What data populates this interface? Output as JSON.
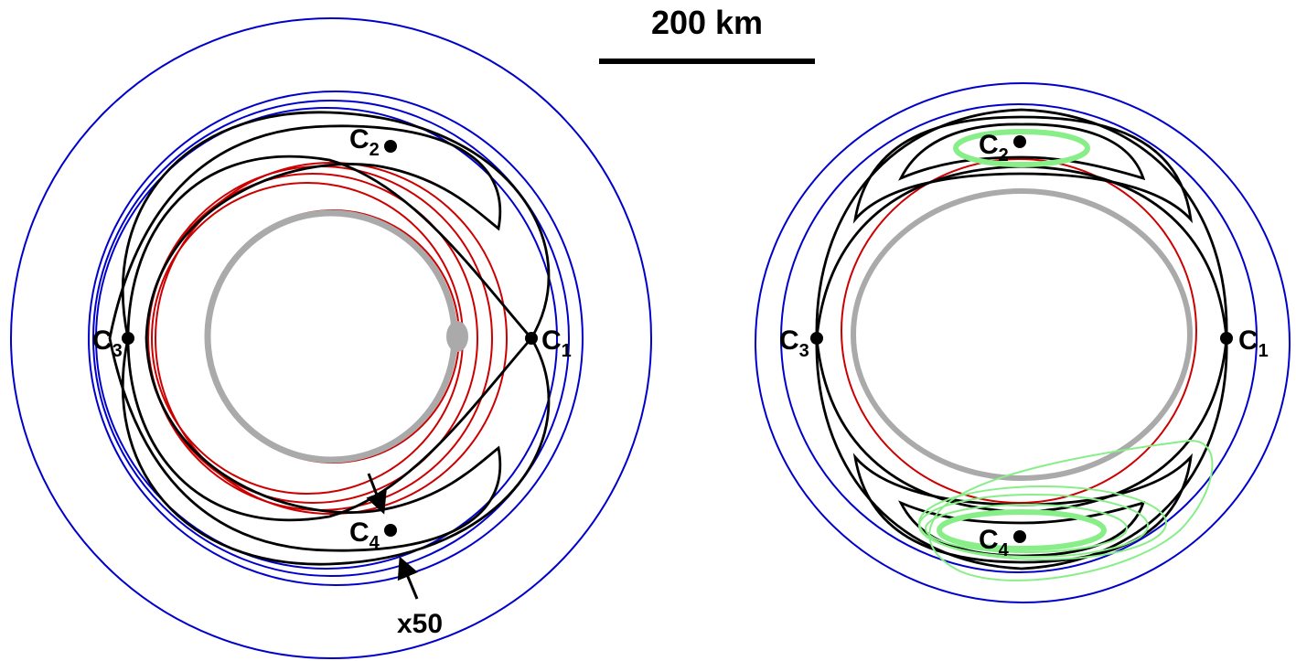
{
  "scale": {
    "label": "200 km"
  },
  "left_diagram": {
    "points": {
      "c1": "C",
      "c1_sub": "1",
      "c2": "C",
      "c2_sub": "2",
      "c3": "C",
      "c3_sub": "3",
      "c4": "C",
      "c4_sub": "4"
    },
    "annotation": "x50"
  },
  "right_diagram": {
    "points": {
      "c1": "C",
      "c1_sub": "1",
      "c2": "C",
      "c2_sub": "2",
      "c3": "C",
      "c3_sub": "3",
      "c4": "C",
      "c4_sub": "4"
    }
  },
  "colors": {
    "blue": "#0000cc",
    "red": "#cc0000",
    "black": "#000000",
    "gray": "#aaaaaa",
    "green": "#88ee88"
  }
}
